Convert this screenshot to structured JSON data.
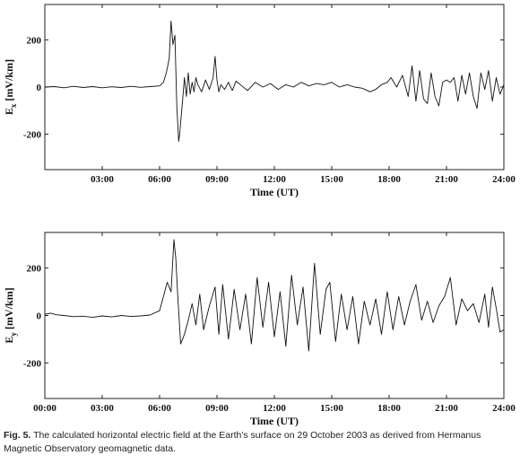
{
  "figure": {
    "caption_label": "Fig. 5.",
    "caption_text": "The calculated horizontal electric field at the Earth's surface on 29 October 2003 as derived from Hermanus Magnetic Observatory geomagnetic data."
  },
  "chart_data": [
    {
      "type": "line",
      "ylabel_main": "E",
      "ylabel_sub": "x",
      "ylabel_unit": " [mV/km]",
      "xlabel": "Time (UT)",
      "xlim": [
        0,
        24
      ],
      "ylim": [
        -350,
        350
      ],
      "xticks": [
        3,
        6,
        9,
        12,
        15,
        18,
        21,
        24
      ],
      "xtick_labels": [
        "03:00",
        "06:00",
        "09:00",
        "12:00",
        "15:00",
        "18:00",
        "21:00",
        "24:00"
      ],
      "yticks": [
        200,
        0,
        -200
      ],
      "ytick_labels": [
        "200",
        "0",
        "-200"
      ],
      "series": [
        {
          "x": [
            0,
            0.5,
            1,
            1.5,
            2,
            2.5,
            3,
            3.5,
            4,
            4.5,
            5,
            5.5,
            6,
            6.2,
            6.35,
            6.5,
            6.6,
            6.7,
            6.8,
            6.9,
            7.0,
            7.05,
            7.1,
            7.2,
            7.3,
            7.4,
            7.5,
            7.6,
            7.7,
            7.8,
            7.9,
            8.0,
            8.2,
            8.4,
            8.6,
            8.8,
            8.9,
            9.0,
            9.1,
            9.2,
            9.4,
            9.6,
            9.8,
            10.0,
            10.3,
            10.6,
            11.0,
            11.4,
            11.8,
            12.2,
            12.6,
            13.0,
            13.4,
            13.8,
            14.2,
            14.6,
            15.0,
            15.4,
            15.8,
            16.2,
            16.6,
            17.0,
            17.3,
            17.6,
            17.9,
            18.1,
            18.4,
            18.7,
            19.0,
            19.2,
            19.4,
            19.6,
            19.8,
            20.0,
            20.2,
            20.4,
            20.6,
            20.8,
            21.0,
            21.2,
            21.4,
            21.6,
            21.8,
            22.0,
            22.2,
            22.4,
            22.6,
            22.8,
            23.0,
            23.2,
            23.4,
            23.6,
            23.8,
            24.0
          ],
          "y": [
            0,
            2,
            -3,
            3,
            -2,
            2,
            -3,
            1,
            -2,
            3,
            -1,
            2,
            5,
            20,
            60,
            120,
            280,
            180,
            220,
            -80,
            -230,
            -200,
            -150,
            -60,
            40,
            -40,
            60,
            -30,
            20,
            -20,
            40,
            10,
            -20,
            30,
            -10,
            40,
            130,
            30,
            -20,
            10,
            -10,
            20,
            -15,
            25,
            5,
            -15,
            20,
            0,
            15,
            -10,
            10,
            0,
            20,
            5,
            15,
            10,
            20,
            0,
            10,
            0,
            -5,
            -20,
            -10,
            10,
            20,
            40,
            0,
            50,
            -40,
            90,
            -60,
            70,
            -50,
            -70,
            60,
            -40,
            -80,
            20,
            30,
            20,
            40,
            -60,
            50,
            -30,
            60,
            -40,
            -90,
            60,
            -10,
            70,
            -60,
            40,
            -30,
            10
          ]
        }
      ]
    },
    {
      "type": "line",
      "ylabel_main": "E",
      "ylabel_sub": "y",
      "ylabel_unit": " [mV/km]",
      "xlabel": "Time (UT)",
      "xlim": [
        0,
        24
      ],
      "ylim": [
        -350,
        350
      ],
      "xticks": [
        0,
        3,
        6,
        9,
        12,
        15,
        18,
        21,
        24
      ],
      "xtick_labels": [
        "00:00",
        "03:00",
        "06:00",
        "09:00",
        "12:00",
        "15:00",
        "18:00",
        "21:00",
        "24:00"
      ],
      "yticks": [
        200,
        0,
        -200
      ],
      "ytick_labels": [
        "200",
        "0",
        "-200"
      ],
      "series": [
        {
          "x": [
            0,
            0.3,
            0.6,
            1.0,
            1.5,
            2.0,
            2.5,
            3.0,
            3.5,
            4.0,
            4.5,
            5.0,
            5.5,
            6.0,
            6.2,
            6.4,
            6.6,
            6.75,
            6.85,
            6.95,
            7.1,
            7.3,
            7.5,
            7.7,
            7.9,
            8.1,
            8.3,
            8.6,
            8.9,
            9.1,
            9.3,
            9.6,
            9.9,
            10.2,
            10.5,
            10.8,
            11.1,
            11.4,
            11.7,
            12.0,
            12.3,
            12.6,
            12.9,
            13.2,
            13.5,
            13.8,
            14.1,
            14.4,
            14.7,
            14.9,
            15.2,
            15.5,
            15.8,
            16.1,
            16.4,
            16.7,
            17.0,
            17.3,
            17.6,
            17.9,
            18.2,
            18.5,
            18.8,
            19.1,
            19.4,
            19.7,
            20.0,
            20.3,
            20.6,
            20.9,
            21.2,
            21.5,
            21.8,
            22.1,
            22.4,
            22.7,
            23.0,
            23.2,
            23.4,
            23.6,
            23.8,
            24.0
          ],
          "y": [
            5,
            10,
            3,
            0,
            -5,
            -3,
            -8,
            -2,
            -6,
            0,
            -4,
            -2,
            2,
            20,
            80,
            140,
            100,
            320,
            240,
            80,
            -120,
            -80,
            -20,
            50,
            -40,
            90,
            -60,
            40,
            120,
            -80,
            130,
            -100,
            110,
            -60,
            90,
            -120,
            160,
            -50,
            140,
            -90,
            100,
            -130,
            170,
            -40,
            120,
            -150,
            220,
            -80,
            110,
            140,
            -110,
            90,
            -60,
            80,
            -120,
            60,
            -40,
            70,
            -80,
            100,
            -60,
            80,
            -40,
            60,
            130,
            -20,
            60,
            -30,
            40,
            80,
            160,
            -40,
            70,
            20,
            50,
            -30,
            90,
            -50,
            120,
            30,
            -70,
            -60
          ]
        }
      ]
    }
  ]
}
